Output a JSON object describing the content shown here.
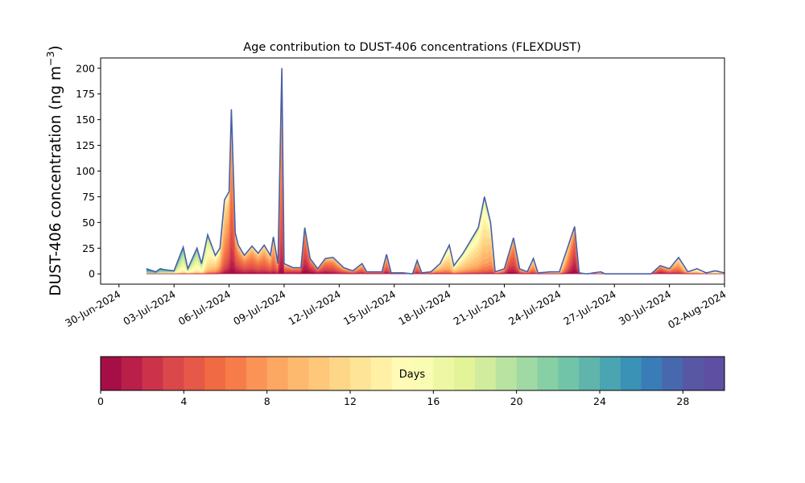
{
  "chart_data": {
    "type": "area",
    "title": "Age contribution to DUST-406 concentrations (FLEXDUST)",
    "ylabel": "DUST-406 concentration (ng m",
    "ylabel_sup": "−3",
    "ylabel_close": ")",
    "ylim": [
      -10,
      210
    ],
    "yticks": [
      0,
      25,
      50,
      75,
      100,
      125,
      150,
      175,
      200
    ],
    "xlim": [
      "2024-06-29",
      "2024-08-02"
    ],
    "xticks": [
      "30-Jun-2024",
      "03-Jul-2024",
      "06-Jul-2024",
      "09-Jul-2024",
      "12-Jul-2024",
      "15-Jul-2024",
      "18-Jul-2024",
      "21-Jul-2024",
      "24-Jul-2024",
      "27-Jul-2024",
      "30-Jul-2024",
      "02-Aug-2024"
    ],
    "xtick_dates": [
      "2024-06-30",
      "2024-07-03",
      "2024-07-06",
      "2024-07-09",
      "2024-07-12",
      "2024-07-15",
      "2024-07-18",
      "2024-07-21",
      "2024-07-24",
      "2024-07-27",
      "2024-07-30",
      "2024-08-02"
    ],
    "total_line_color": "#4a5fa8",
    "total": [
      [
        "2024-07-01 12:00",
        5
      ],
      [
        "2024-07-02 00:00",
        2
      ],
      [
        "2024-07-02 06:00",
        5
      ],
      [
        "2024-07-02 12:00",
        4
      ],
      [
        "2024-07-03 00:00",
        3
      ],
      [
        "2024-07-03 12:00",
        26
      ],
      [
        "2024-07-03 18:00",
        5
      ],
      [
        "2024-07-04 06:00",
        25
      ],
      [
        "2024-07-04 12:00",
        10
      ],
      [
        "2024-07-04 20:00",
        38
      ],
      [
        "2024-07-05 06:00",
        18
      ],
      [
        "2024-07-05 12:00",
        25
      ],
      [
        "2024-07-05 18:00",
        72
      ],
      [
        "2024-07-06 00:00",
        80
      ],
      [
        "2024-07-06 03:00",
        160
      ],
      [
        "2024-07-06 08:00",
        40
      ],
      [
        "2024-07-06 12:00",
        28
      ],
      [
        "2024-07-06 20:00",
        18
      ],
      [
        "2024-07-07 06:00",
        27
      ],
      [
        "2024-07-07 14:00",
        20
      ],
      [
        "2024-07-07 22:00",
        28
      ],
      [
        "2024-07-08 06:00",
        18
      ],
      [
        "2024-07-08 10:00",
        36
      ],
      [
        "2024-07-08 16:00",
        10
      ],
      [
        "2024-07-08 21:00",
        200
      ],
      [
        "2024-07-09 00:00",
        10
      ],
      [
        "2024-07-09 12:00",
        6
      ],
      [
        "2024-07-09 22:00",
        6
      ],
      [
        "2024-07-10 03:00",
        45
      ],
      [
        "2024-07-10 10:00",
        15
      ],
      [
        "2024-07-10 20:00",
        5
      ],
      [
        "2024-07-11 06:00",
        15
      ],
      [
        "2024-07-11 16:00",
        16
      ],
      [
        "2024-07-12 06:00",
        6
      ],
      [
        "2024-07-12 18:00",
        3
      ],
      [
        "2024-07-13 06:00",
        10
      ],
      [
        "2024-07-13 12:00",
        2
      ],
      [
        "2024-07-14 00:00",
        2
      ],
      [
        "2024-07-14 08:00",
        2
      ],
      [
        "2024-07-14 14:00",
        19
      ],
      [
        "2024-07-14 20:00",
        1
      ],
      [
        "2024-07-15 12:00",
        1
      ],
      [
        "2024-07-16 00:00",
        0
      ],
      [
        "2024-07-16 06:00",
        13
      ],
      [
        "2024-07-16 12:00",
        1
      ],
      [
        "2024-07-17 00:00",
        2
      ],
      [
        "2024-07-17 12:00",
        10
      ],
      [
        "2024-07-18 00:00",
        28
      ],
      [
        "2024-07-18 06:00",
        8
      ],
      [
        "2024-07-18 18:00",
        20
      ],
      [
        "2024-07-19 06:00",
        35
      ],
      [
        "2024-07-19 14:00",
        45
      ],
      [
        "2024-07-19 22:00",
        75
      ],
      [
        "2024-07-20 06:00",
        50
      ],
      [
        "2024-07-20 12:00",
        2
      ],
      [
        "2024-07-21 00:00",
        5
      ],
      [
        "2024-07-21 12:00",
        35
      ],
      [
        "2024-07-21 20:00",
        5
      ],
      [
        "2024-07-22 06:00",
        2
      ],
      [
        "2024-07-22 14:00",
        15
      ],
      [
        "2024-07-22 20:00",
        1
      ],
      [
        "2024-07-23 12:00",
        2
      ],
      [
        "2024-07-24 00:00",
        2
      ],
      [
        "2024-07-24 20:00",
        46
      ],
      [
        "2024-07-25 02:00",
        1
      ],
      [
        "2024-07-25 12:00",
        0
      ],
      [
        "2024-07-26 06:00",
        2
      ],
      [
        "2024-07-26 12:00",
        0
      ],
      [
        "2024-07-28 12:00",
        0
      ],
      [
        "2024-07-29 00:00",
        0
      ],
      [
        "2024-07-29 12:00",
        8
      ],
      [
        "2024-07-30 00:00",
        5
      ],
      [
        "2024-07-30 12:00",
        16
      ],
      [
        "2024-07-31 00:00",
        2
      ],
      [
        "2024-07-31 12:00",
        5
      ],
      [
        "2024-08-01 00:00",
        1
      ],
      [
        "2024-08-01 12:00",
        3
      ],
      [
        "2024-08-02 00:00",
        1
      ],
      [
        "2024-08-02 08:00",
        2
      ]
    ],
    "age_profile": [
      [
        "2024-07-01 12:00",
        24
      ],
      [
        "2024-07-03 12:00",
        18
      ],
      [
        "2024-07-04 12:00",
        17
      ],
      [
        "2024-07-05 12:00",
        10
      ],
      [
        "2024-07-06 06:00",
        5
      ],
      [
        "2024-07-08 12:00",
        7
      ],
      [
        "2024-07-09 12:00",
        4
      ],
      [
        "2024-07-10 12:00",
        3
      ],
      [
        "2024-07-12 00:00",
        6
      ],
      [
        "2024-07-14 12:00",
        6
      ],
      [
        "2024-07-16 12:00",
        6
      ],
      [
        "2024-07-18 00:00",
        12
      ],
      [
        "2024-07-20 00:00",
        12
      ],
      [
        "2024-07-21 06:00",
        4
      ],
      [
        "2024-07-22 12:00",
        8
      ],
      [
        "2024-07-24 00:00",
        12
      ],
      [
        "2024-07-24 20:00",
        3
      ],
      [
        "2024-07-26 00:00",
        14
      ],
      [
        "2024-07-29 12:00",
        4
      ],
      [
        "2024-07-30 12:00",
        8
      ],
      [
        "2024-08-02 08:00",
        20
      ]
    ],
    "colorbar": {
      "label": "Days",
      "range": [
        0,
        30
      ],
      "ticks": [
        0,
        4,
        8,
        12,
        16,
        20,
        24,
        28
      ],
      "colors": [
        "#a50f46",
        "#ba1f49",
        "#cc334b",
        "#db484b",
        "#e65847",
        "#f06a43",
        "#f67c4a",
        "#f99356",
        "#fca762",
        "#fdb96e",
        "#fec77a",
        "#fed688",
        "#fee496",
        "#fff0a6",
        "#fffbb7",
        "#f9fcb3",
        "#eef8a4",
        "#e2f398",
        "#d0ec9c",
        "#b9e3a0",
        "#a0d9a3",
        "#87cfa4",
        "#72c4a8",
        "#5fb5ac",
        "#4ba4b1",
        "#3a92b6",
        "#3a7cb8",
        "#4768ad",
        "#5757a4",
        "#5e4fa2"
      ]
    }
  }
}
